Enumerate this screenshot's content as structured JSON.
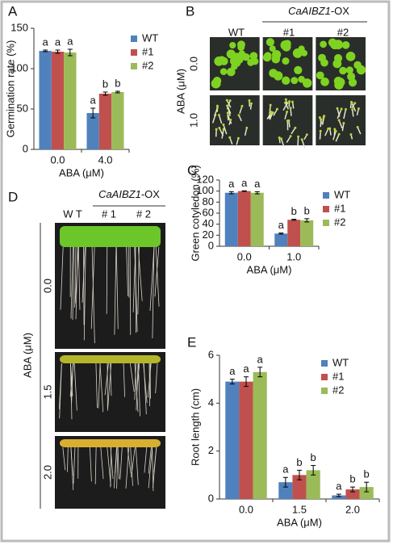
{
  "chart_data": [
    {
      "type": "bar",
      "panel": "A",
      "ylabel": "Germination rate (%)",
      "xlabel": "ABA (μM)",
      "categories": [
        "0.0",
        "4.0"
      ],
      "series": [
        {
          "name": "WT",
          "color": "#4f81bd",
          "values": [
            122,
            45
          ],
          "errors": [
            1,
            6
          ],
          "letters": [
            "a",
            "a"
          ]
        },
        {
          "name": "#1",
          "color": "#c0504d",
          "values": [
            121,
            69
          ],
          "errors": [
            2,
            2
          ],
          "letters": [
            "a",
            "b"
          ]
        },
        {
          "name": "#2",
          "color": "#9bbb59",
          "values": [
            120,
            71
          ],
          "errors": [
            4,
            1
          ],
          "letters": [
            "a",
            "b"
          ]
        }
      ],
      "ylim": [
        0,
        150
      ],
      "yticks": [
        0,
        50,
        100,
        150
      ]
    },
    {
      "type": "bar",
      "panel": "C",
      "ylabel": "Green cotyledon (%)",
      "xlabel": "ABA (μM)",
      "categories": [
        "0.0",
        "1.0"
      ],
      "series": [
        {
          "name": "WT",
          "color": "#4f81bd",
          "values": [
            97,
            23
          ],
          "errors": [
            2,
            1
          ],
          "letters": [
            "a",
            "a"
          ]
        },
        {
          "name": "#1",
          "color": "#c0504d",
          "values": [
            100,
            48
          ],
          "errors": [
            0.5,
            1
          ],
          "letters": [
            "a",
            "b"
          ]
        },
        {
          "name": "#2",
          "color": "#9bbb59",
          "values": [
            97,
            47
          ],
          "errors": [
            2,
            3
          ],
          "letters": [
            "a",
            "b"
          ]
        }
      ],
      "ylim": [
        0,
        120
      ],
      "yticks": [
        0,
        20,
        40,
        60,
        80,
        100,
        120
      ]
    },
    {
      "type": "bar",
      "panel": "E",
      "ylabel": "Root length (cm)",
      "xlabel": "ABA (μM)",
      "categories": [
        "0.0",
        "1.5",
        "2.0"
      ],
      "series": [
        {
          "name": "WT",
          "color": "#4f81bd",
          "values": [
            4.9,
            0.7,
            0.15
          ],
          "errors": [
            0.1,
            0.2,
            0.05
          ],
          "letters": [
            "a",
            "a",
            "a"
          ]
        },
        {
          "name": "#1",
          "color": "#c0504d",
          "values": [
            4.9,
            1.0,
            0.4
          ],
          "errors": [
            0.2,
            0.2,
            0.1
          ],
          "letters": [
            "a",
            "b",
            "b"
          ]
        },
        {
          "name": "#2",
          "color": "#9bbb59",
          "values": [
            5.3,
            1.2,
            0.5
          ],
          "errors": [
            0.2,
            0.2,
            0.2
          ],
          "letters": [
            "a",
            "b",
            "b"
          ]
        }
      ],
      "ylim": [
        0,
        6
      ],
      "yticks": [
        0,
        2,
        4,
        6
      ]
    }
  ],
  "photo_panels": [
    {
      "panel": "B",
      "gene": "CaAIBZ1",
      "suffix": "-OX",
      "columns": [
        "WT",
        "#1",
        "#2"
      ],
      "rows": [
        "0.0",
        "1.0"
      ],
      "row_axis": "ABA (μM)"
    },
    {
      "panel": "D",
      "gene": "CaAIBZ1",
      "suffix": "-OX",
      "columns": [
        "W T",
        "# 1",
        "# 2"
      ],
      "rows": [
        "0.0",
        "1.5",
        "2.0"
      ],
      "row_axis": "ABA (μM)"
    }
  ]
}
